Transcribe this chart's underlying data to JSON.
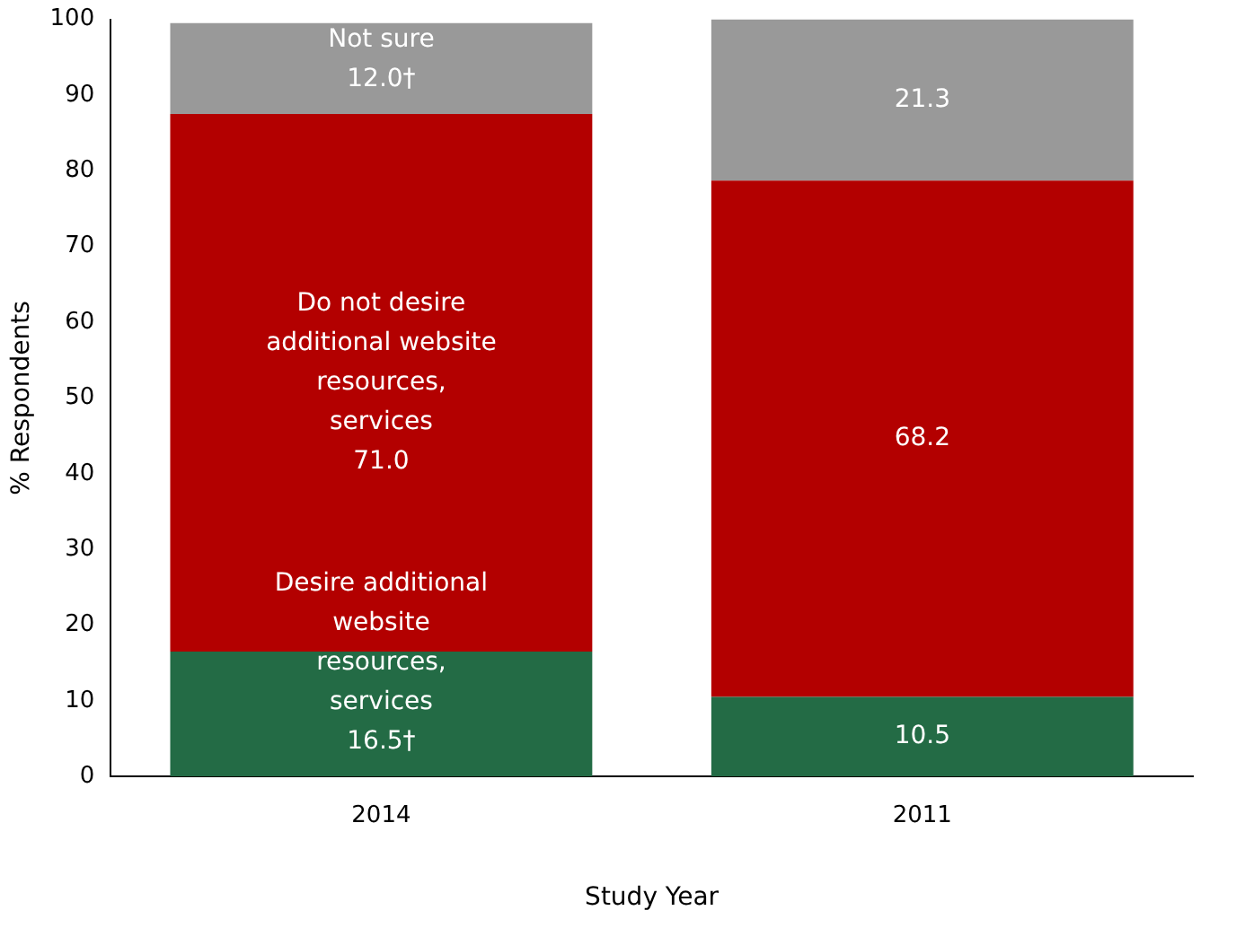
{
  "chart_data": {
    "type": "bar",
    "stacked": true,
    "xlabel": "Study Year",
    "ylabel": "% Respondents",
    "categories": [
      "2014",
      "2011"
    ],
    "series": [
      {
        "name": "Desire additional website resources, services",
        "color": "#236b45",
        "values": [
          16.5,
          10.5
        ],
        "value_labels": [
          "16.5†",
          "10.5"
        ]
      },
      {
        "name": "Do not desire additional website resources, services",
        "color": "#b30000",
        "values": [
          71.0,
          68.2
        ],
        "value_labels": [
          "71.0",
          "68.2"
        ]
      },
      {
        "name": "Not sure",
        "color": "#999999",
        "values": [
          12.0,
          21.3
        ],
        "value_labels": [
          "12.0†",
          "21.3"
        ]
      }
    ],
    "ylim": [
      0,
      100
    ],
    "yticks": [
      0,
      10,
      20,
      30,
      40,
      50,
      60,
      70,
      80,
      90,
      100
    ],
    "grid": false,
    "legend": false
  }
}
